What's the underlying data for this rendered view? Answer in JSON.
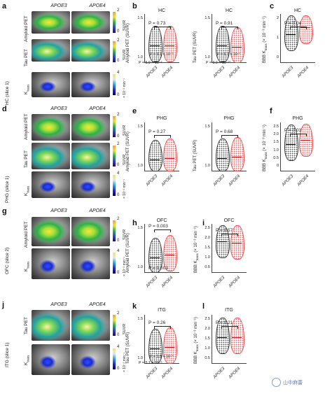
{
  "panels": {
    "a": {
      "letter": "a",
      "cols": [
        "APOE3",
        "APOE4"
      ],
      "rows": [
        "Amyloid PET",
        "Tau PET"
      ],
      "bottom_row_label": "K",
      "bottom_row_sub": "trans",
      "region_label": "HC (slice 1)",
      "cbar_pet": {
        "max": "2",
        "min": "0",
        "label": "SUVR"
      },
      "cbar_pet2": {
        "max": "2",
        "min": "0",
        "label": "SUVR"
      },
      "cbar_k": {
        "max": "4",
        "min": "0",
        "label": "× 10⁻³ min⁻¹"
      }
    },
    "d": {
      "letter": "d",
      "cols": [
        "APOE3",
        "APOE4"
      ],
      "rows": [
        "Amyloid PET",
        "Tau PET"
      ],
      "bottom_row_label": "K",
      "bottom_row_sub": "trans",
      "region_label": "PHG (slice 1)",
      "cbar_pet": {
        "max": "2",
        "min": "0",
        "label": "SUVR"
      },
      "cbar_pet2": {
        "max": "2",
        "min": "0",
        "label": "SUVR"
      },
      "cbar_k": {
        "max": "4",
        "min": "0",
        "label": "× 10⁻³ min⁻¹"
      }
    },
    "g": {
      "letter": "g",
      "cols": [
        "APOE3",
        "APOE4"
      ],
      "rows": [
        "Amyloid PET"
      ],
      "bottom_row_label": "K",
      "bottom_row_sub": "trans",
      "region_label": "OFC (slice 2)",
      "cbar_pet": {
        "max": "2",
        "min": "0",
        "label": "SUVR"
      },
      "cbar_k": {
        "max": "4",
        "min": "0",
        "label": "× 10⁻³ min⁻¹"
      }
    },
    "j": {
      "letter": "j",
      "cols": [
        "APOE3",
        "APOE4"
      ],
      "rows": [
        "Tau PET"
      ],
      "bottom_row_label": "K",
      "bottom_row_sub": "trans",
      "region_label": "ITG (slice 1)",
      "cbar_pet": {
        "max": "2",
        "min": "0",
        "label": "SUVR"
      },
      "cbar_k": {
        "max": "4",
        "min": "0",
        "label": "× 10⁻³ min⁻¹"
      }
    }
  },
  "chart_data": [
    {
      "panel": "b1",
      "letter": "b",
      "type": "violin",
      "title": "HC",
      "ylabel": "Amyloid PET (SUVR)",
      "ylim": [
        0.9,
        1.6
      ],
      "yticks": [
        "1.5",
        "1.0"
      ],
      "categories": [
        "APOE3",
        "APOE4"
      ],
      "medians": [
        1.15,
        1.15
      ],
      "annotations": [
        "P = 0.73",
        "P = 9.1 × 10⁻⁵",
        "P = 5.9 × 10⁻⁶"
      ]
    },
    {
      "panel": "b2",
      "type": "violin",
      "title": "HC",
      "ylabel": "Tau PET (SUVR)",
      "ylim": [
        0.9,
        1.6
      ],
      "yticks": [
        "1.5",
        "1.0"
      ],
      "categories": [
        "APOE3",
        "APOE4"
      ],
      "medians": [
        1.15,
        1.13
      ],
      "annotations": [
        "P = 0.91",
        "P = 6.7 × 10⁻⁷",
        "P = 9.0 × 10⁻¹²"
      ]
    },
    {
      "panel": "c",
      "letter": "c",
      "type": "violin",
      "title": "HC",
      "ylabel": "BBB K",
      "ylabel_sub": "trans",
      "ylabel_unit": " (× 10⁻³ min⁻¹)",
      "ylim": [
        0,
        2.2
      ],
      "yticks": [
        "2",
        "1",
        "0"
      ],
      "categories": [
        "APOE3",
        "APOE4"
      ],
      "medians": [
        1.3,
        1.6
      ],
      "annotations": [
        "P = 0.04"
      ]
    },
    {
      "panel": "e1",
      "letter": "e",
      "type": "violin",
      "title": "PHG",
      "ylabel": "Amyloid PET (SUVR)",
      "ylim": [
        0.8,
        1.6
      ],
      "yticks": [
        "1.5",
        "1.0"
      ],
      "categories": [
        "APOE3",
        "APOE4"
      ],
      "medians": [
        1.0,
        1.02
      ],
      "annotations": [
        "P = 0.27"
      ]
    },
    {
      "panel": "e2",
      "type": "violin",
      "title": "PHG",
      "ylabel": "Tau PET (SUVR)",
      "ylim": [
        0.8,
        1.6
      ],
      "yticks": [
        "1.5",
        "1.0"
      ],
      "categories": [
        "APOE3",
        "APOE4"
      ],
      "medians": [
        1.02,
        1.04
      ],
      "annotations": [
        "P = 0.68"
      ]
    },
    {
      "panel": "f",
      "letter": "f",
      "type": "violin",
      "title": "PHG",
      "ylabel": "BBB K",
      "ylabel_sub": "trans",
      "ylabel_unit": " (× 10⁻³ min⁻¹)",
      "ylim": [
        0,
        2.5
      ],
      "yticks": [
        "2.5",
        "2.0",
        "1.5",
        "1.0",
        "0.5",
        "0"
      ],
      "categories": [
        "APOE3",
        "APOE4"
      ],
      "medians": [
        1.4,
        1.6
      ],
      "annotations": [
        "P = 0.03"
      ]
    },
    {
      "panel": "h",
      "letter": "h",
      "type": "violin",
      "title": "OFC",
      "ylabel": "Amyloid PET (SUVR)",
      "ylim": [
        0.8,
        1.6
      ],
      "yticks": [
        "1.5",
        "1.0"
      ],
      "categories": [
        "APOE3",
        "APOE4"
      ],
      "medians": [
        1.05,
        1.1
      ],
      "annotations": [
        "P = 0.003",
        "P = 0.003"
      ]
    },
    {
      "panel": "i",
      "letter": "i",
      "type": "violin",
      "title": "OFC",
      "ylabel": "BBB K",
      "ylabel_sub": "trans",
      "ylabel_unit": " (× 10⁻³ min⁻¹)",
      "ylim": [
        0,
        2.5
      ],
      "yticks": [
        "2.5",
        "2.0",
        "1.5",
        "1.0",
        "0.5"
      ],
      "categories": [
        "APOE3",
        "APOE4"
      ],
      "medians": [
        1.6,
        1.55
      ],
      "annotations": [
        "P = 0.57"
      ]
    },
    {
      "panel": "k",
      "letter": "k",
      "type": "violin",
      "title": "ITG",
      "ylabel": "Tau PET (SUVR)",
      "ylim": [
        0.8,
        1.6
      ],
      "yticks": [
        "1.5",
        "1.0"
      ],
      "categories": [
        "APOE3",
        "APOE4"
      ],
      "medians": [
        1.05,
        1.08
      ],
      "annotations": [
        "P = 0.26",
        "P = 1.9 × 10⁻⁴",
        "P = 5.1 × 10⁻⁶"
      ]
    },
    {
      "panel": "l",
      "letter": "l",
      "type": "violin",
      "title": "ITG",
      "ylabel": "BBB K",
      "ylabel_sub": "trans",
      "ylabel_unit": " (× 10⁻³ min⁻¹)",
      "ylim": [
        0,
        2.5
      ],
      "yticks": [
        "2.5",
        "2.0",
        "1.5",
        "1.0",
        "0.5"
      ],
      "categories": [
        "APOE3",
        "APOE4"
      ],
      "medians": [
        1.35,
        1.35
      ],
      "annotations": [
        "P = 0.21"
      ]
    }
  ],
  "watermark": "山中麻蕾",
  "colors": {
    "apoe3": "#333333",
    "apoe4": "#e05050"
  }
}
